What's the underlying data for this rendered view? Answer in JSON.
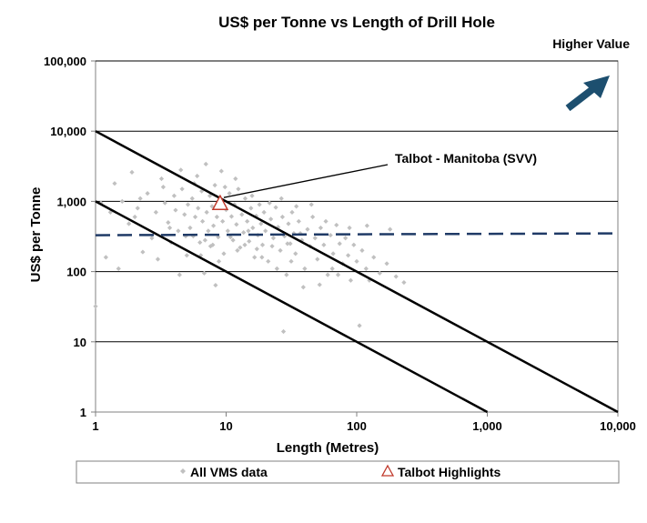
{
  "chart_data": {
    "type": "scatter",
    "title": "US$ per Tonne vs Length of Drill Hole",
    "xlabel": "Length (Metres)",
    "ylabel": "US$ per Tonne",
    "xscale": "log",
    "yscale": "log",
    "xlim": [
      1,
      10000
    ],
    "ylim": [
      1,
      100000
    ],
    "x_ticks": [
      1,
      10,
      100,
      1000,
      10000
    ],
    "x_tick_labels": [
      "1",
      "10",
      "100",
      "1,000",
      "10,000"
    ],
    "y_ticks": [
      1,
      10,
      100,
      1000,
      10000,
      100000
    ],
    "y_tick_labels": [
      "1",
      "10",
      "100",
      "1,000",
      "10,000",
      "100,000"
    ],
    "grid": "horizontal",
    "legend_position": "bottom",
    "colors": {
      "scatter": "#c0c0c0",
      "highlight": "#c0392b",
      "dashed": "#1f3a66",
      "arrow": "#1d4f6f",
      "lines": "#000000"
    },
    "annotations": {
      "higher_value": "Higher Value",
      "talbot_label": "Talbot - Manitoba (SVV)"
    },
    "reference_lines": [
      {
        "from": [
          1,
          10000
        ],
        "to": [
          10000,
          1
        ]
      },
      {
        "from": [
          1,
          1000
        ],
        "to": [
          1000,
          1
        ]
      }
    ],
    "dashed_line": {
      "x": [
        1,
        10000
      ],
      "y": [
        330,
        350
      ]
    },
    "series": [
      {
        "name": "All VMS data",
        "marker": "diamond",
        "points": [
          [
            1.0,
            32
          ],
          [
            1.1,
            950
          ],
          [
            1.2,
            160
          ],
          [
            1.4,
            1800
          ],
          [
            1.5,
            110
          ],
          [
            1.6,
            1000
          ],
          [
            1.8,
            480
          ],
          [
            1.9,
            2600
          ],
          [
            2.0,
            600
          ],
          [
            2.1,
            800
          ],
          [
            2.3,
            190
          ],
          [
            2.5,
            1300
          ],
          [
            2.7,
            300
          ],
          [
            2.9,
            700
          ],
          [
            3.0,
            150
          ],
          [
            3.2,
            2100
          ],
          [
            3.3,
            1600
          ],
          [
            3.4,
            950
          ],
          [
            3.6,
            500
          ],
          [
            3.8,
            260
          ],
          [
            4.0,
            1200
          ],
          [
            4.1,
            750
          ],
          [
            4.3,
            380
          ],
          [
            4.5,
            2800
          ],
          [
            4.6,
            1500
          ],
          [
            4.8,
            650
          ],
          [
            5.0,
            170
          ],
          [
            5.1,
            900
          ],
          [
            5.3,
            420
          ],
          [
            5.5,
            1100
          ],
          [
            5.6,
            320
          ],
          [
            5.8,
            600
          ],
          [
            6.0,
            2300
          ],
          [
            6.1,
            800
          ],
          [
            6.3,
            260
          ],
          [
            6.5,
            1400
          ],
          [
            6.6,
            520
          ],
          [
            6.8,
            95
          ],
          [
            7.0,
            3400
          ],
          [
            7.1,
            700
          ],
          [
            7.3,
            380
          ],
          [
            7.5,
            1200
          ],
          [
            7.6,
            230
          ],
          [
            7.8,
            850
          ],
          [
            8.0,
            450
          ],
          [
            8.2,
            1700
          ],
          [
            8.3,
            64
          ],
          [
            8.5,
            600
          ],
          [
            8.7,
            310
          ],
          [
            9.0,
            1000
          ],
          [
            9.2,
            2700
          ],
          [
            9.4,
            520
          ],
          [
            9.6,
            180
          ],
          [
            10.0,
            760
          ],
          [
            10.3,
            380
          ],
          [
            10.6,
            1300
          ],
          [
            11.0,
            610
          ],
          [
            11.3,
            280
          ],
          [
            11.6,
            900
          ],
          [
            12.0,
            470
          ],
          [
            12.4,
            1500
          ],
          [
            12.8,
            220
          ],
          [
            13.2,
            650
          ],
          [
            13.6,
            360
          ],
          [
            14.0,
            1100
          ],
          [
            14.5,
            520
          ],
          [
            15.0,
            270
          ],
          [
            15.5,
            800
          ],
          [
            16.0,
            420
          ],
          [
            16.5,
            160
          ],
          [
            17.0,
            620
          ],
          [
            17.5,
            330
          ],
          [
            18.0,
            900
          ],
          [
            18.5,
            480
          ],
          [
            19.0,
            240
          ],
          [
            19.5,
            700
          ],
          [
            20.0,
            380
          ],
          [
            21.0,
            140
          ],
          [
            22.0,
            560
          ],
          [
            23.0,
            300
          ],
          [
            24.0,
            820
          ],
          [
            25.0,
            430
          ],
          [
            26.0,
            200
          ],
          [
            27.0,
            600
          ],
          [
            28.0,
            320
          ],
          [
            29.0,
            90
          ],
          [
            30.0,
            480
          ],
          [
            31.0,
            250
          ],
          [
            32.0,
            700
          ],
          [
            33.0,
            350
          ],
          [
            34.0,
            180
          ],
          [
            36.0,
            520
          ],
          [
            38.0,
            280
          ],
          [
            40.0,
            110
          ],
          [
            42.0,
            400
          ],
          [
            44.0,
            230
          ],
          [
            46.0,
            600
          ],
          [
            48.0,
            300
          ],
          [
            50.0,
            150
          ],
          [
            53.0,
            420
          ],
          [
            56.0,
            240
          ],
          [
            60.0,
            90
          ],
          [
            63.0,
            330
          ],
          [
            66.0,
            180
          ],
          [
            70.0,
            460
          ],
          [
            74.0,
            250
          ],
          [
            78.0,
            130
          ],
          [
            82.0,
            300
          ],
          [
            86.0,
            170
          ],
          [
            90.0,
            75
          ],
          [
            95.0,
            240
          ],
          [
            100.0,
            140
          ],
          [
            105.0,
            17
          ],
          [
            110.0,
            200
          ],
          [
            118.0,
            110
          ],
          [
            125.0,
            75
          ],
          [
            135.0,
            160
          ],
          [
            150.0,
            95
          ],
          [
            170.0,
            130
          ],
          [
            200.0,
            85
          ],
          [
            230.0,
            70
          ],
          [
            1.3,
            700
          ],
          [
            2.2,
            1100
          ],
          [
            3.7,
            420
          ],
          [
            4.4,
            90
          ],
          [
            5.7,
            1800
          ],
          [
            6.9,
            280
          ],
          [
            8.8,
            140
          ],
          [
            12.2,
            200
          ],
          [
            15.8,
            1200
          ],
          [
            21.5,
            950
          ],
          [
            26.5,
            1100
          ],
          [
            34.5,
            850
          ],
          [
            45.0,
            900
          ],
          [
            58.0,
            520
          ],
          [
            65.0,
            110
          ],
          [
            88.0,
            420
          ],
          [
            120.0,
            450
          ],
          [
            180.0,
            400
          ],
          [
            9.8,
            1600
          ],
          [
            11.8,
            2100
          ],
          [
            14.8,
            380
          ],
          [
            18.8,
            160
          ],
          [
            24.5,
            110
          ],
          [
            31.5,
            140
          ],
          [
            27.5,
            14
          ],
          [
            39.0,
            60
          ],
          [
            52.0,
            65
          ],
          [
            72.0,
            90
          ],
          [
            4.9,
            320
          ],
          [
            6.4,
            170
          ],
          [
            7.9,
            240
          ],
          [
            10.8,
            310
          ],
          [
            13.9,
            240
          ],
          [
            17.2,
            210
          ],
          [
            22.5,
            230
          ],
          [
            29.5,
            250
          ],
          [
            37.0,
            350
          ]
        ]
      },
      {
        "name": "Talbot Highlights",
        "marker": "triangle",
        "points": [
          [
            9.0,
            920
          ]
        ]
      }
    ],
    "legend": [
      {
        "label": "All VMS data",
        "marker": "diamond"
      },
      {
        "label": "Talbot Highlights",
        "marker": "triangle"
      }
    ]
  }
}
